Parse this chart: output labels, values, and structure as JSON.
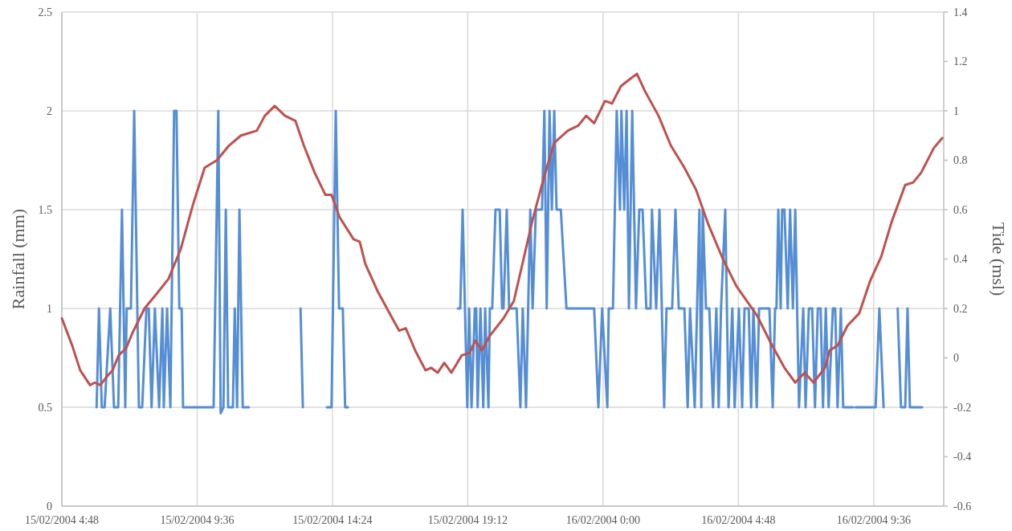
{
  "chart_data": {
    "type": "line",
    "ylabel": "Rainfall (mm)",
    "y2label": "Tide (msl)",
    "grid": true,
    "line_style": "solid",
    "marker": "none",
    "xlim": [
      "2004-02-15T04:48",
      "2004-02-16T12:05"
    ],
    "xticks": [
      {
        "value": "2004-02-15T04:48",
        "label": "15/02/2004 4:48"
      },
      {
        "value": "2004-02-15T09:36",
        "label": "15/02/2004 9:36"
      },
      {
        "value": "2004-02-15T14:24",
        "label": "15/02/2004 14:24"
      },
      {
        "value": "2004-02-15T19:12",
        "label": "15/02/2004 19:12"
      },
      {
        "value": "2004-02-16T00:00",
        "label": "16/02/2004 0:00"
      },
      {
        "value": "2004-02-16T04:48",
        "label": "16/02/2004 4:48"
      },
      {
        "value": "2004-02-16T09:36",
        "label": "16/02/2004 9:36"
      }
    ],
    "ylim": [
      0,
      2.5
    ],
    "yticks": [
      0,
      0.5,
      1,
      1.5,
      2,
      2.5
    ],
    "y2lim": [
      -0.6,
      1.4
    ],
    "y2ticks": [
      -0.6,
      -0.4,
      -0.2,
      0,
      0.2,
      0.4,
      0.6,
      0.8,
      1,
      1.2,
      1.4
    ],
    "series": [
      {
        "color": "#558ed5",
        "x": [
          "2004-02-15T06:02",
          "2004-02-15T06:07",
          "2004-02-15T06:13",
          "2004-02-15T06:19",
          "2004-02-15T06:31",
          "2004-02-15T06:39",
          "2004-02-15T06:48",
          "2004-02-15T06:56",
          "2004-02-15T07:03",
          "2004-02-15T07:06",
          "2004-02-15T07:15",
          "2004-02-15T07:22",
          "2004-02-15T07:32",
          "2004-02-15T07:39",
          "2004-02-15T07:48",
          "2004-02-15T07:53",
          "2004-02-15T07:59",
          "2004-02-15T08:06",
          "2004-02-15T08:15",
          "2004-02-15T08:22",
          "2004-02-15T08:25",
          "2004-02-15T08:32",
          "2004-02-15T08:39",
          "2004-02-15T08:47",
          "2004-02-15T08:52",
          "2004-02-15T08:58",
          "2004-02-15T09:03",
          "2004-02-15T09:06",
          "2004-02-15T09:15",
          "2004-02-15T09:18",
          "2004-02-15T09:32",
          "2004-02-15T10:11",
          "2004-02-15T10:21",
          "2004-02-15T10:26",
          "2004-02-15T10:32",
          "2004-02-15T10:37",
          "2004-02-15T10:42",
          "2004-02-15T10:52",
          "2004-02-15T10:56",
          "2004-02-15T11:01",
          "2004-02-15T11:06",
          "2004-02-15T11:13",
          "2004-02-15T11:26",
          "2004-02-15T12:18",
          "2004-02-15T13:16",
          "2004-02-15T13:21",
          "2004-02-15T13:43",
          "2004-02-15T14:12",
          "2004-02-15T14:22",
          "2004-02-15T14:31",
          "2004-02-15T14:38",
          "2004-02-15T14:46",
          "2004-02-15T14:51",
          "2004-02-15T14:57",
          "2004-02-15T16:51",
          "2004-02-15T18:51",
          "2004-02-15T18:56",
          "2004-02-15T19:01",
          "2004-02-15T19:11",
          "2004-02-15T19:15",
          "2004-02-15T19:20",
          "2004-02-15T19:27",
          "2004-02-15T19:30",
          "2004-02-15T19:33",
          "2004-02-15T19:39",
          "2004-02-15T19:45",
          "2004-02-15T19:49",
          "2004-02-15T19:56",
          "2004-02-15T19:59",
          "2004-02-15T20:04",
          "2004-02-15T20:11",
          "2004-02-15T20:20",
          "2004-02-15T20:25",
          "2004-02-15T20:28",
          "2004-02-15T20:35",
          "2004-02-15T20:40",
          "2004-02-15T20:56",
          "2004-02-15T21:04",
          "2004-02-15T21:09",
          "2004-02-15T21:16",
          "2004-02-15T21:25",
          "2004-02-15T21:30",
          "2004-02-15T21:37",
          "2004-02-15T21:50",
          "2004-02-15T21:55",
          "2004-02-15T22:00",
          "2004-02-15T22:06",
          "2004-02-15T22:11",
          "2004-02-15T22:16",
          "2004-02-15T22:21",
          "2004-02-15T22:30",
          "2004-02-15T22:42",
          "2004-02-15T23:41",
          "2004-02-15T23:50",
          "2004-02-15T23:58",
          "2004-02-16T00:09",
          "2004-02-16T00:12",
          "2004-02-16T00:21",
          "2004-02-16T00:29",
          "2004-02-16T00:36",
          "2004-02-16T00:39",
          "2004-02-16T00:45",
          "2004-02-16T00:50",
          "2004-02-16T00:55",
          "2004-02-16T01:02",
          "2004-02-16T01:10",
          "2004-02-16T01:17",
          "2004-02-16T01:24",
          "2004-02-16T01:32",
          "2004-02-16T01:41",
          "2004-02-16T01:44",
          "2004-02-16T01:53",
          "2004-02-16T02:00",
          "2004-02-16T02:10",
          "2004-02-16T02:15",
          "2004-02-16T02:27",
          "2004-02-16T02:34",
          "2004-02-16T02:41",
          "2004-02-16T02:53",
          "2004-02-16T03:00",
          "2004-02-16T03:05",
          "2004-02-16T03:15",
          "2004-02-16T03:25",
          "2004-02-16T03:29",
          "2004-02-16T03:32",
          "2004-02-16T03:39",
          "2004-02-16T03:46",
          "2004-02-16T03:54",
          "2004-02-16T04:01",
          "2004-02-16T04:06",
          "2004-02-16T04:11",
          "2004-02-16T04:20",
          "2004-02-16T04:27",
          "2004-02-16T04:35",
          "2004-02-16T04:40",
          "2004-02-16T04:49",
          "2004-02-16T04:56",
          "2004-02-16T05:01",
          "2004-02-16T05:10",
          "2004-02-16T05:15",
          "2004-02-16T05:20",
          "2004-02-16T05:27",
          "2004-02-16T05:32",
          "2004-02-16T05:54",
          "2004-02-16T06:01",
          "2004-02-16T06:06",
          "2004-02-16T06:09",
          "2004-02-16T06:13",
          "2004-02-16T06:18",
          "2004-02-16T06:21",
          "2004-02-16T06:26",
          "2004-02-16T06:33",
          "2004-02-16T06:38",
          "2004-02-16T06:44",
          "2004-02-16T06:49",
          "2004-02-16T06:57",
          "2004-02-16T07:06",
          "2004-02-16T07:11",
          "2004-02-16T07:18",
          "2004-02-16T07:25",
          "2004-02-16T07:31",
          "2004-02-16T07:37",
          "2004-02-16T07:43",
          "2004-02-16T07:48",
          "2004-02-16T07:54",
          "2004-02-16T08:00",
          "2004-02-16T08:09",
          "2004-02-16T08:14",
          "2004-02-16T08:19",
          "2004-02-16T08:26",
          "2004-02-16T08:31",
          "2004-02-16T08:52",
          "2004-02-16T08:55",
          "2004-02-16T08:57",
          "2004-02-16T09:40",
          "2004-02-16T09:48",
          "2004-02-16T09:57",
          "2004-02-16T10:14",
          "2004-02-16T10:27",
          "2004-02-16T10:34",
          "2004-02-16T10:43",
          "2004-02-16T10:48",
          "2004-02-16T10:53",
          "2004-02-16T11:19"
        ],
        "values": [
          0.5,
          1,
          0.5,
          0.5,
          1,
          0.5,
          0.5,
          1.5,
          0.5,
          1,
          1,
          2,
          0.5,
          0.5,
          1,
          1,
          0.5,
          1,
          0.5,
          1,
          0.5,
          1,
          0.5,
          2,
          2,
          1,
          1,
          0.5,
          0.5,
          0.5,
          0.5,
          0.5,
          2,
          0.47,
          0.5,
          1.5,
          0.5,
          0.5,
          1,
          0.5,
          1.5,
          0.5,
          0.5,
          null,
          1,
          0.5,
          null,
          0.5,
          0.5,
          2,
          1,
          1,
          0.5,
          0.5,
          null,
          1,
          1,
          1.5,
          0.5,
          1,
          0.5,
          1,
          1,
          0.5,
          1,
          0.5,
          1,
          0.5,
          1,
          1,
          1.5,
          1.5,
          1,
          1,
          1.5,
          1,
          1,
          0.5,
          1,
          0.5,
          1.5,
          1,
          1.5,
          1.5,
          2,
          1,
          2,
          1.5,
          2,
          1.5,
          1.5,
          1,
          1,
          0.5,
          1,
          0.5,
          1,
          1,
          2,
          1.5,
          2,
          1.5,
          2,
          1,
          2,
          1,
          1.5,
          1.5,
          1,
          1,
          1.5,
          1,
          1.5,
          0.5,
          1,
          1,
          1.5,
          1,
          1,
          0.5,
          1,
          0.5,
          1.5,
          0.5,
          1.5,
          1,
          1,
          0.5,
          1,
          0.5,
          1,
          1.5,
          0.5,
          1,
          0.5,
          1,
          0.5,
          1,
          1,
          0.5,
          1,
          0.5,
          1,
          1,
          0.5,
          1,
          1,
          1.5,
          1,
          1.5,
          1.5,
          1,
          1.5,
          1,
          1.5,
          0.5,
          1,
          0.5,
          1,
          1,
          0.5,
          1,
          1,
          0.5,
          1,
          0.5,
          1,
          1,
          0.5,
          1,
          0.5,
          0.5,
          null,
          0.5,
          0.5,
          1,
          0.5,
          null,
          1,
          0.5,
          0.5,
          1,
          0.5,
          0.5
        ]
      },
      {
        "color": "#c0504d",
        "axis": "y2",
        "x": [
          "2004-02-15T04:48",
          "2004-02-15T05:10",
          "2004-02-15T05:27",
          "2004-02-15T05:48",
          "2004-02-15T05:58",
          "2004-02-15T06:10",
          "2004-02-15T06:22",
          "2004-02-15T06:36",
          "2004-02-15T06:49",
          "2004-02-15T07:05",
          "2004-02-15T07:18",
          "2004-02-15T07:44",
          "2004-02-15T08:10",
          "2004-02-15T08:35",
          "2004-02-15T09:01",
          "2004-02-15T09:27",
          "2004-02-15T09:52",
          "2004-02-15T10:18",
          "2004-02-15T10:44",
          "2004-02-15T11:09",
          "2004-02-15T11:43",
          "2004-02-15T12:00",
          "2004-02-15T12:21",
          "2004-02-15T12:43",
          "2004-02-15T13:05",
          "2004-02-15T13:23",
          "2004-02-15T13:46",
          "2004-02-15T14:09",
          "2004-02-15T14:22",
          "2004-02-15T14:39",
          "2004-02-15T15:09",
          "2004-02-15T15:22",
          "2004-02-15T15:34",
          "2004-02-15T16:00",
          "2004-02-15T16:20",
          "2004-02-15T16:46",
          "2004-02-15T17:00",
          "2004-02-15T17:20",
          "2004-02-15T17:42",
          "2004-02-15T17:54",
          "2004-02-15T18:08",
          "2004-02-15T18:22",
          "2004-02-15T18:37",
          "2004-02-15T18:59",
          "2004-02-15T19:16",
          "2004-02-15T19:28",
          "2004-02-15T19:42",
          "2004-02-15T19:59",
          "2004-02-15T20:28",
          "2004-02-15T20:50",
          "2004-02-15T21:07",
          "2004-02-15T21:30",
          "2004-02-15T21:54",
          "2004-02-15T22:16",
          "2004-02-15T22:45",
          "2004-02-15T23:07",
          "2004-02-15T23:24",
          "2004-02-15T23:41",
          "2004-02-16T00:04",
          "2004-02-16T00:19",
          "2004-02-16T00:38",
          "2004-02-16T00:58",
          "2004-02-16T01:12",
          "2004-02-16T01:29",
          "2004-02-16T01:58",
          "2004-02-16T02:24",
          "2004-02-16T02:53",
          "2004-02-16T03:18",
          "2004-02-16T03:44",
          "2004-02-16T04:15",
          "2004-02-16T04:44",
          "2004-02-16T05:28",
          "2004-02-16T05:57",
          "2004-02-16T06:26",
          "2004-02-16T06:49",
          "2004-02-16T07:09",
          "2004-02-16T07:28",
          "2004-02-16T07:52",
          "2004-02-16T08:02",
          "2004-02-16T08:19",
          "2004-02-16T08:40",
          "2004-02-16T09:05",
          "2004-02-16T09:28",
          "2004-02-16T09:52",
          "2004-02-16T10:14",
          "2004-02-16T10:43",
          "2004-02-16T11:00",
          "2004-02-16T11:17",
          "2004-02-16T11:44",
          "2004-02-16T12:02"
        ],
        "values": [
          0.16,
          0.05,
          -0.05,
          -0.11,
          -0.1,
          -0.11,
          -0.08,
          -0.05,
          0.01,
          0.04,
          0.1,
          0.2,
          0.26,
          0.32,
          0.44,
          0.62,
          0.77,
          0.8,
          0.86,
          0.9,
          0.92,
          0.98,
          1.02,
          0.98,
          0.96,
          0.86,
          0.75,
          0.66,
          0.66,
          0.57,
          0.48,
          0.47,
          0.38,
          0.27,
          0.2,
          0.11,
          0.12,
          0.03,
          -0.05,
          -0.04,
          -0.06,
          -0.02,
          -0.06,
          0.01,
          0.02,
          0.07,
          0.03,
          0.09,
          0.16,
          0.23,
          0.37,
          0.56,
          0.73,
          0.87,
          0.92,
          0.94,
          0.98,
          0.95,
          1.04,
          1.03,
          1.1,
          1.13,
          1.15,
          1.08,
          0.98,
          0.86,
          0.77,
          0.68,
          0.54,
          0.4,
          0.29,
          0.17,
          0.06,
          -0.04,
          -0.1,
          -0.06,
          -0.1,
          -0.04,
          0.03,
          0.05,
          0.13,
          0.18,
          0.31,
          0.41,
          0.55,
          0.7,
          0.71,
          0.75,
          0.85,
          0.89
        ]
      }
    ]
  }
}
